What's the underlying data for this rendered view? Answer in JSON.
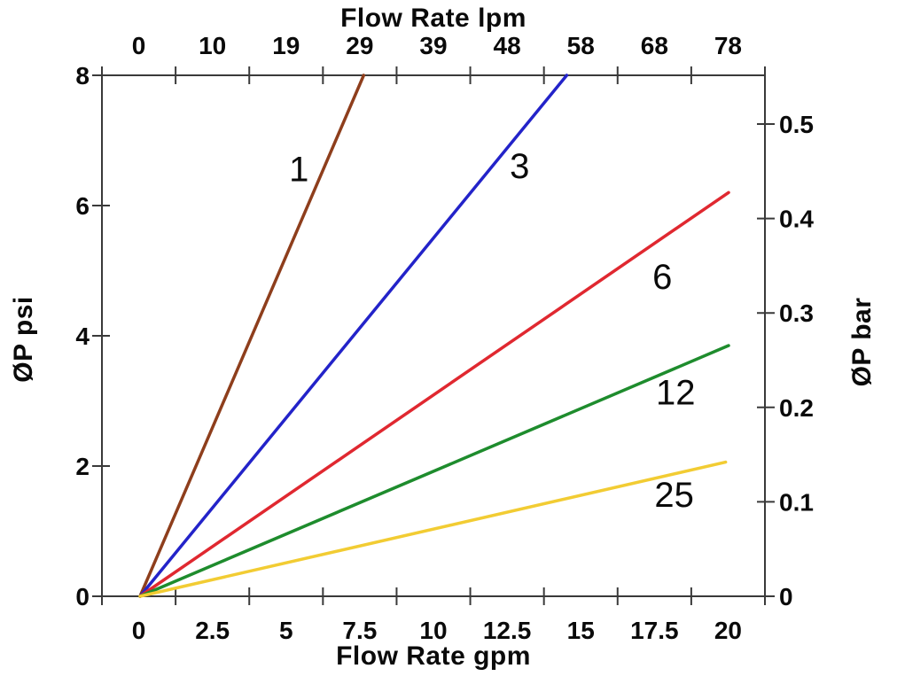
{
  "chart_data": {
    "type": "line",
    "grid": false,
    "legend": false,
    "axis_color": "#3a3a3a",
    "text_color": "#0a0a0a",
    "background": "#ffffff",
    "axes": {
      "x_top": {
        "title": "Flow Rate lpm",
        "tick_labels": [
          "0",
          "10",
          "19",
          "29",
          "39",
          "48",
          "58",
          "68",
          "78"
        ],
        "unit": "lpm"
      },
      "x_bottom": {
        "title": "Flow Rate gpm",
        "tick_labels": [
          "0",
          "2.5",
          "5",
          "7.5",
          "10",
          "12.5",
          "15",
          "17.5",
          "20"
        ],
        "range": [
          0,
          20
        ],
        "unit": "gpm"
      },
      "y_left": {
        "title": "ØP psi",
        "tick_labels": [
          "0",
          "2",
          "4",
          "6",
          "8"
        ],
        "range": [
          0,
          8
        ],
        "unit": "psi"
      },
      "y_right": {
        "title": "ØP bar",
        "tick_labels": [
          "0",
          "0.1",
          "0.2",
          "0.3",
          "0.4",
          "0.5"
        ],
        "unit": "bar",
        "psi_per_bar": 14.5038
      }
    },
    "series": [
      {
        "label": "1",
        "color": "#8E3E1C",
        "points": [
          [
            0,
            0
          ],
          [
            7.6,
            8.0
          ]
        ],
        "label_at": [
          5.4,
          6.55
        ]
      },
      {
        "label": "3",
        "color": "#2323C9",
        "points": [
          [
            0,
            0
          ],
          [
            14.5,
            8.0
          ]
        ],
        "label_at": [
          12.9,
          6.6
        ]
      },
      {
        "label": "6",
        "color": "#E02830",
        "points": [
          [
            0,
            0
          ],
          [
            20,
            6.2
          ]
        ],
        "label_at": [
          17.75,
          4.9
        ]
      },
      {
        "label": "12",
        "color": "#1E8C2D",
        "points": [
          [
            0,
            0
          ],
          [
            20,
            3.85
          ]
        ],
        "label_at": [
          18.2,
          3.12
        ]
      },
      {
        "label": "25",
        "color": "#F2CC33",
        "points": [
          [
            0,
            0
          ],
          [
            19.9,
            2.06
          ]
        ],
        "label_at": [
          18.15,
          1.55
        ]
      }
    ]
  }
}
